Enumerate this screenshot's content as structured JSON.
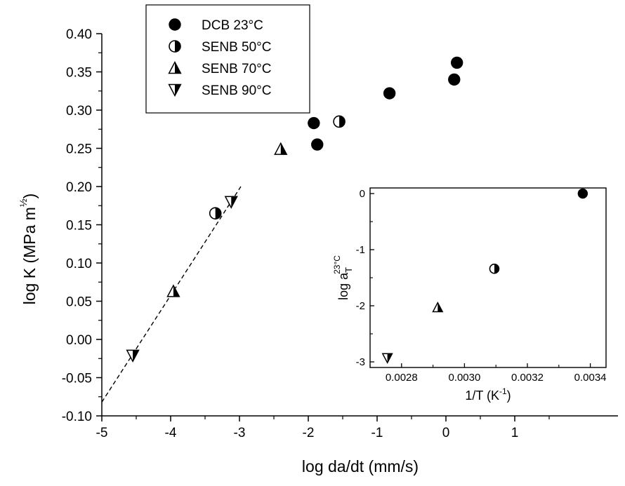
{
  "chart_data": [
    {
      "type": "scatter",
      "title": "",
      "xlabel": "log da/dt (mm/s)",
      "ylabel": "log K (MPa m",
      "ylabel_superscript": "½",
      "ylabel_close": ")",
      "xlim": [
        -5,
        2.5
      ],
      "ylim": [
        -0.1,
        0.4
      ],
      "x_ticks": [
        "-5",
        "-4",
        "-3",
        "-2",
        "-1",
        "0",
        "1"
      ],
      "y_ticks": [
        "-0.10",
        "-0.05",
        "0.00",
        "0.05",
        "0.10",
        "0.15",
        "0.20",
        "0.25",
        "0.30",
        "0.35",
        "0.40"
      ],
      "grid": false,
      "legend": {
        "placement": "top-left",
        "entries": [
          {
            "label": "DCB 23°C",
            "marker": "circle-filled"
          },
          {
            "label": "SENB 50°C",
            "marker": "circle-half"
          },
          {
            "label": "SENB 70°C",
            "marker": "triangle-up-half"
          },
          {
            "label": "SENB 90°C",
            "marker": "triangle-down-half"
          }
        ]
      },
      "series": [
        {
          "name": "DCB 23°C",
          "marker": "circle-filled",
          "points": [
            {
              "x": -1.92,
              "y": 0.283
            },
            {
              "x": -1.87,
              "y": 0.255
            },
            {
              "x": -0.82,
              "y": 0.322
            },
            {
              "x": 0.12,
              "y": 0.34
            },
            {
              "x": 0.16,
              "y": 0.362
            }
          ]
        },
        {
          "name": "SENB 50°C",
          "marker": "circle-half",
          "points": [
            {
              "x": -3.35,
              "y": 0.165
            },
            {
              "x": -1.55,
              "y": 0.285
            }
          ]
        },
        {
          "name": "SENB 70°C",
          "marker": "triangle-up-half",
          "points": [
            {
              "x": -3.96,
              "y": 0.063
            },
            {
              "x": -2.4,
              "y": 0.249
            }
          ]
        },
        {
          "name": "SENB 90°C",
          "marker": "triangle-down-half",
          "points": [
            {
              "x": -4.55,
              "y": -0.021
            },
            {
              "x": -3.12,
              "y": 0.18
            }
          ]
        }
      ],
      "fit_line": {
        "style": "dashed",
        "from": {
          "x": -5.0,
          "y": -0.082
        },
        "to": {
          "x": -2.98,
          "y": 0.2
        }
      }
    },
    {
      "type": "scatter",
      "title": "",
      "xlabel": "1/T (K",
      "xlabel_superscript": "-1",
      "xlabel_close": ")",
      "ylabel": "log a",
      "ylabel_subscript": "T",
      "ylabel_superscript": "23°C",
      "xlim": [
        0.0027,
        0.00345
      ],
      "ylim": [
        -3.1,
        0.1
      ],
      "x_ticks": [
        "0.0028",
        "0.0030",
        "0.0032",
        "0.0034"
      ],
      "y_ticks": [
        "0",
        "-1",
        "-2",
        "-3"
      ],
      "grid": false,
      "points": [
        {
          "x": 0.003376,
          "y": 0.0,
          "marker": "circle-filled"
        },
        {
          "x": 0.003095,
          "y": -1.34,
          "marker": "circle-half"
        },
        {
          "x": 0.002915,
          "y": -2.03,
          "marker": "triangle-up-half"
        },
        {
          "x": 0.002755,
          "y": -2.93,
          "marker": "triangle-down-half"
        }
      ]
    }
  ]
}
